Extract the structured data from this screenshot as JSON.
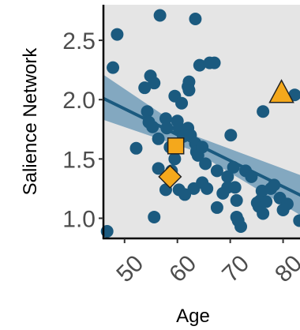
{
  "colors": {
    "panel": "#e5e5e5",
    "point": "#1b5a7f",
    "band": "#5a8fb0",
    "line": "#1b5a7f",
    "highlight": "#f4a81c",
    "axis": "#000000"
  },
  "chart_data": {
    "type": "scatter",
    "xlabel": "Age",
    "ylabel": "Salience Network",
    "xlim": [
      46,
      83.5
    ],
    "ylim": [
      0.83,
      2.8
    ],
    "x_ticks": [
      50,
      60,
      70,
      80
    ],
    "x_tick_labels": [
      "50",
      "60",
      "70",
      "80"
    ],
    "y_ticks": [
      1.0,
      1.5,
      2.0,
      2.5
    ],
    "y_tick_labels": [
      "1.0",
      "1.5",
      "2.0",
      "2.5"
    ],
    "grid": false,
    "series": [
      {
        "marker": "circle",
        "points": [
          [
            46.7,
            0.89
          ],
          [
            47.8,
            2.27
          ],
          [
            48.6,
            2.55
          ],
          [
            52.2,
            1.59
          ],
          [
            53.8,
            2.1
          ],
          [
            54.3,
            1.9
          ],
          [
            54.6,
            1.81
          ],
          [
            54.9,
            2.2
          ],
          [
            55.3,
            1.77
          ],
          [
            55.6,
            2.14
          ],
          [
            55.6,
            1.01
          ],
          [
            56.4,
            1.67
          ],
          [
            56.4,
            1.42
          ],
          [
            56.7,
            2.71
          ],
          [
            57.8,
            1.24
          ],
          [
            57.8,
            1.84
          ],
          [
            58.0,
            1.76
          ],
          [
            58.6,
            1.6
          ],
          [
            58.9,
            1.4
          ],
          [
            59.5,
            2.03
          ],
          [
            59.5,
            1.5
          ],
          [
            60.0,
            1.82
          ],
          [
            60.3,
            1.24
          ],
          [
            60.3,
            1.76
          ],
          [
            60.8,
            1.97
          ],
          [
            61.1,
            1.69
          ],
          [
            61.4,
            1.2
          ],
          [
            62.0,
            2.11
          ],
          [
            62.0,
            1.76
          ],
          [
            62.2,
            2.15
          ],
          [
            62.2,
            2.08
          ],
          [
            62.5,
            1.7
          ],
          [
            63.1,
            1.25
          ],
          [
            63.4,
            2.68
          ],
          [
            63.4,
            1.63
          ],
          [
            63.6,
            1.56
          ],
          [
            63.9,
            1.53
          ],
          [
            64.2,
            2.29
          ],
          [
            64.7,
            1.6
          ],
          [
            64.7,
            1.3
          ],
          [
            65.3,
            1.46
          ],
          [
            65.6,
            1.25
          ],
          [
            66.1,
            2.31
          ],
          [
            67.0,
            2.31
          ],
          [
            67.5,
            1.4
          ],
          [
            67.5,
            1.09
          ],
          [
            68.6,
            1.21
          ],
          [
            69.5,
            1.35
          ],
          [
            69.5,
            1.26
          ],
          [
            70.1,
            1.7
          ],
          [
            70.6,
            1.43
          ],
          [
            70.9,
            1.26
          ],
          [
            71.2,
            1.15
          ],
          [
            71.2,
            1.01
          ],
          [
            71.5,
            0.98
          ],
          [
            72.0,
            0.93
          ],
          [
            72.9,
            1.4
          ],
          [
            74.0,
            1.35
          ],
          [
            75.1,
            1.13
          ],
          [
            75.4,
            1.1
          ],
          [
            75.7,
            1.15
          ],
          [
            76.0,
            1.23
          ],
          [
            76.2,
            1.9
          ],
          [
            76.2,
            1.04
          ],
          [
            76.8,
            1.14
          ],
          [
            77.7,
            1.25
          ],
          [
            78.3,
            1.28
          ],
          [
            79.4,
            1.17
          ],
          [
            80.0,
            1.07
          ],
          [
            80.8,
            1.12
          ],
          [
            82.2,
            2.04
          ],
          [
            83.1,
            0.98
          ]
        ]
      },
      {
        "marker": "square",
        "points": [
          [
            59.7,
            1.61
          ]
        ]
      },
      {
        "marker": "diamond",
        "points": [
          [
            58.6,
            1.35
          ]
        ]
      },
      {
        "marker": "triangle",
        "points": [
          [
            79.7,
            2.05
          ]
        ]
      }
    ],
    "fit": {
      "type": "linear",
      "x": [
        46,
        83.5
      ],
      "y": [
        2.01,
        1.19
      ],
      "ci_lower": [
        1.83,
        1.02
      ],
      "ci_upper": [
        2.21,
        1.36
      ],
      "ci_mid_x": 63,
      "ci_mid_lower": 1.57,
      "ci_mid_upper": 1.7
    }
  }
}
